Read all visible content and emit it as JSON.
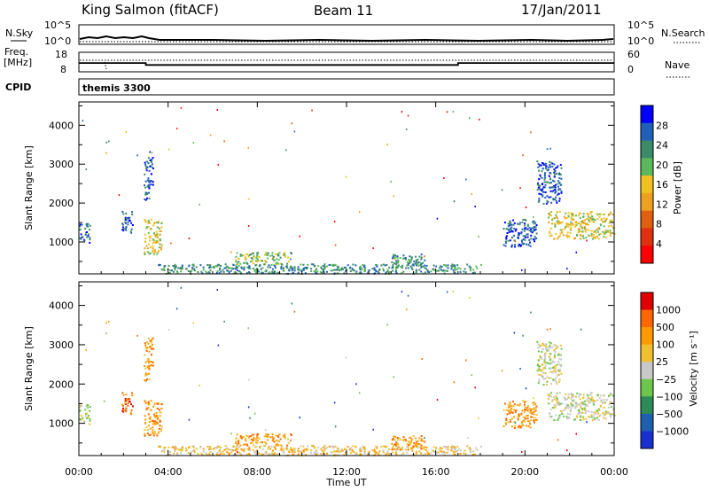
{
  "header": {
    "station": "King Salmon (fitACF)",
    "beam": "Beam 11",
    "date": "17/Jan/2011"
  },
  "top_panels": {
    "nsky_label": "N.Sky",
    "nsearch_label": "N.Search",
    "noise_ticks": [
      "10^5",
      "10^0"
    ],
    "freq_label_1": "Freq.",
    "freq_label_2": "[MHz]",
    "freq_ticks": [
      "18",
      "8"
    ],
    "nave_label": "Nave",
    "nave_ticks": [
      "60",
      "0"
    ],
    "cpid_label": "CPID",
    "cpid_value": "themis 3300"
  },
  "x_axis": {
    "label": "Time UT",
    "ticks": [
      "00:00",
      "04:00",
      "08:00",
      "12:00",
      "16:00",
      "20:00",
      "00:00"
    ]
  },
  "colors": {
    "power_scale": [
      "#0000ff",
      "#2060b8",
      "#3b8a6a",
      "#5cb85c",
      "#f0c020",
      "#f0a020",
      "#e06010",
      "#e03010",
      "#ff0000"
    ],
    "velocity_scale": [
      "#e00000",
      "#ff6600",
      "#ff9900",
      "#f0c030",
      "#c8c8c8",
      "#6cc64c",
      "#2e8b57",
      "#1e5fb0",
      "#1a2fd0"
    ]
  },
  "chart_data": [
    {
      "type": "line",
      "title": "N.Sky / N.Search",
      "ylim": [
        "10^0",
        "10^5"
      ],
      "x_range_hours": [
        0,
        24
      ]
    },
    {
      "type": "line",
      "title": "Freq. [MHz] / Nave",
      "ylim": [
        8,
        18
      ],
      "ylim_right": [
        0,
        60
      ],
      "frequency_steps": [
        {
          "x": 0,
          "y": 12.5
        },
        {
          "x": 3.0,
          "y": 11.5
        },
        {
          "x": 17.0,
          "y": 12.5
        },
        {
          "x": 24,
          "y": 12.5
        }
      ]
    },
    {
      "type": "heatmap",
      "ylabel": "Slant Range [km]",
      "xlabel": "Time UT",
      "ylim": [
        180,
        4600
      ],
      "yticks": [
        "1000",
        "2000",
        "3000",
        "4000"
      ],
      "colorbar_label": "Power [dB]",
      "colorbar_ticks": [
        "4",
        "8",
        "12",
        "16",
        "20",
        "24",
        "28"
      ],
      "regions": [
        {
          "t0": 0.0,
          "t1": 0.5,
          "r0": 1000,
          "r1": 1500,
          "v": 1
        },
        {
          "t0": 1.9,
          "t1": 2.4,
          "r0": 1250,
          "r1": 1800,
          "v": 1
        },
        {
          "t0": 2.9,
          "t1": 3.7,
          "r0": 700,
          "r1": 1600,
          "v": 4
        },
        {
          "t0": 2.9,
          "t1": 3.3,
          "r0": 2100,
          "r1": 3200,
          "v": 1
        },
        {
          "t0": 7.0,
          "t1": 9.5,
          "r0": 450,
          "r1": 750,
          "v": 3
        },
        {
          "t0": 3.5,
          "t1": 18.0,
          "r0": 200,
          "r1": 450,
          "v": 2
        },
        {
          "t0": 14.0,
          "t1": 15.5,
          "r0": 350,
          "r1": 700,
          "v": 2
        },
        {
          "t0": 19.0,
          "t1": 20.5,
          "r0": 900,
          "r1": 1600,
          "v": 1
        },
        {
          "t0": 20.5,
          "t1": 21.6,
          "r0": 2000,
          "r1": 3100,
          "v": 1
        },
        {
          "t0": 21.0,
          "t1": 24.0,
          "r0": 1100,
          "r1": 1800,
          "v": 4
        }
      ]
    },
    {
      "type": "heatmap",
      "ylabel": "Slant Range [km]",
      "xlabel": "Time UT",
      "ylim": [
        180,
        4600
      ],
      "yticks": [
        "1000",
        "2000",
        "3000",
        "4000"
      ],
      "colorbar_label": "Velocity [m s⁻¹]",
      "colorbar_ticks": [
        "1000",
        "500",
        "100",
        "25",
        "−25",
        "−100",
        "−500",
        "−1000"
      ],
      "regions": [
        {
          "t0": 0.0,
          "t1": 0.5,
          "r0": 1000,
          "r1": 1500,
          "v": 4
        },
        {
          "t0": 1.9,
          "t1": 2.4,
          "r0": 1250,
          "r1": 1800,
          "v": 1
        },
        {
          "t0": 2.9,
          "t1": 3.7,
          "r0": 700,
          "r1": 1600,
          "v": 2
        },
        {
          "t0": 2.9,
          "t1": 3.3,
          "r0": 2100,
          "r1": 3200,
          "v": 2
        },
        {
          "t0": 7.0,
          "t1": 9.5,
          "r0": 450,
          "r1": 750,
          "v": 2
        },
        {
          "t0": 3.5,
          "t1": 18.0,
          "r0": 200,
          "r1": 450,
          "v": 3
        },
        {
          "t0": 14.0,
          "t1": 15.5,
          "r0": 350,
          "r1": 700,
          "v": 2
        },
        {
          "t0": 19.0,
          "t1": 20.5,
          "r0": 900,
          "r1": 1600,
          "v": 2
        },
        {
          "t0": 20.5,
          "t1": 21.6,
          "r0": 2000,
          "r1": 3100,
          "v": 4
        },
        {
          "t0": 21.0,
          "t1": 24.0,
          "r0": 1100,
          "r1": 1800,
          "v": 4
        }
      ]
    }
  ]
}
